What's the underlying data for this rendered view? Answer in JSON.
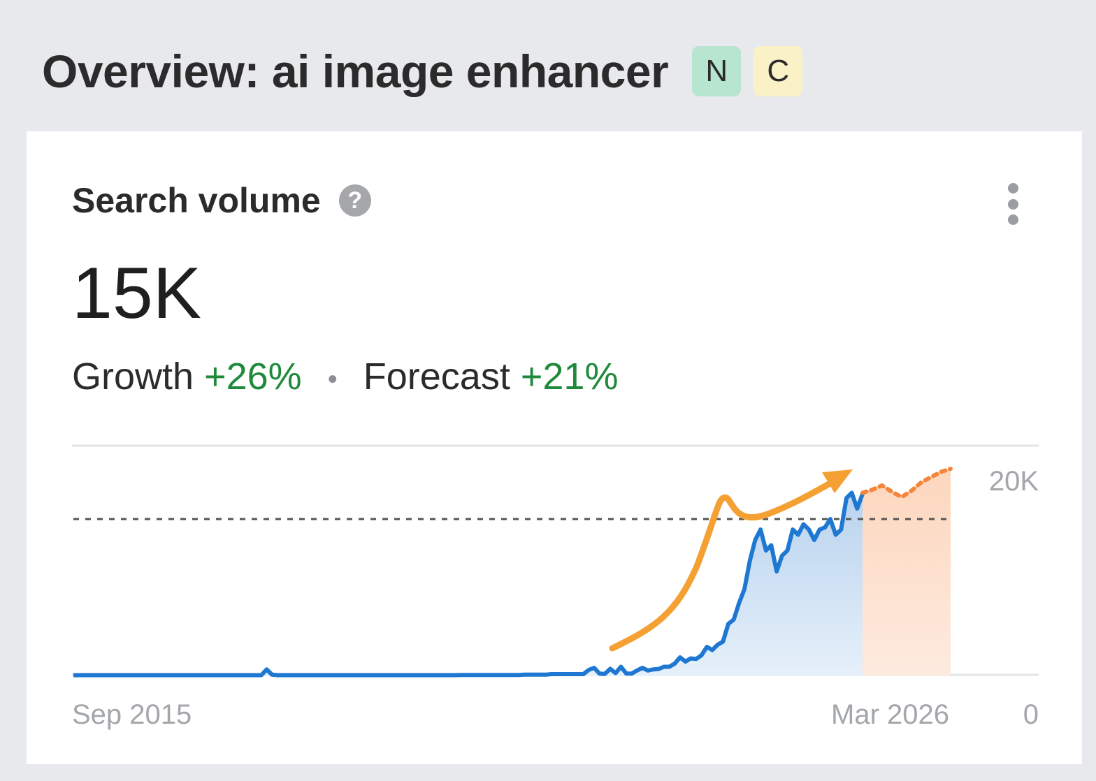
{
  "header": {
    "title": "Overview: ai image enhancer",
    "badges": [
      {
        "label": "N",
        "color": "#b7e5cf"
      },
      {
        "label": "C",
        "color": "#fbf1c7"
      }
    ]
  },
  "card": {
    "title": "Search volume",
    "help_icon": "question-circle-icon",
    "menu_icon": "vertical-dots-icon",
    "value": "15K",
    "growth_label": "Growth",
    "growth_value": "+26%",
    "separator": "•",
    "forecast_label": "Forecast",
    "forecast_value": "+21%",
    "colors": {
      "positive": "#1f8a3b",
      "line": "#1e78d2",
      "area": "#c9dcf0",
      "forecast": "#f5853b",
      "forecast_area": "#fde0cc",
      "annotation_arrow": "#f4a033"
    }
  },
  "chart_data": {
    "type": "area",
    "x_start_label": "Sep 2015",
    "x_end_label": "Mar 2026",
    "ytick_labels": [
      "20K",
      "0"
    ],
    "ylim": [
      0,
      20000
    ],
    "reference_line": 15000,
    "grid": true,
    "series": [
      {
        "x_start": "2015-09",
        "x_end": "2026-03",
        "values": [
          100,
          100,
          100,
          100,
          100,
          100,
          100,
          100,
          100,
          100,
          100,
          100,
          100,
          100,
          100,
          100,
          100,
          100,
          100,
          100,
          100,
          100,
          100,
          100,
          100,
          100,
          100,
          100,
          100,
          100,
          100,
          100,
          100,
          100,
          100,
          100,
          650,
          150,
          100,
          100,
          100,
          100,
          100,
          100,
          100,
          100,
          100,
          100,
          100,
          100,
          100,
          100,
          100,
          100,
          100,
          100,
          100,
          100,
          100,
          100,
          100,
          100,
          100,
          100,
          100,
          100,
          100,
          100,
          100,
          100,
          100,
          100,
          120,
          120,
          120,
          120,
          120,
          120,
          120,
          120,
          120,
          120,
          120,
          120,
          150,
          150,
          150,
          150,
          150,
          200,
          200,
          200,
          200,
          200,
          200,
          200,
          600,
          800,
          250,
          220,
          700,
          300,
          900,
          250,
          250,
          550,
          800,
          550,
          650,
          680,
          900,
          900,
          1200,
          1800,
          1400,
          1700,
          1650,
          2000,
          2800,
          2500,
          3000,
          3300,
          5000,
          5400,
          7000,
          8300,
          11000,
          13000,
          14000,
          12000,
          12500,
          10000,
          11500,
          12000,
          14000,
          13500,
          14500,
          14000,
          13000,
          14000,
          14200,
          15000,
          13500,
          14000,
          17000,
          17500,
          16000,
          17400
        ]
      },
      {
        "forecast": true,
        "x_start": "2026-03",
        "values": [
          17500,
          17800,
          18200,
          17600,
          17100,
          17700,
          18500,
          19000,
          19500,
          19800
        ]
      }
    ],
    "annotations": [
      {
        "type": "arrow",
        "description": "orange hand-drawn upward trend arrow"
      }
    ]
  }
}
